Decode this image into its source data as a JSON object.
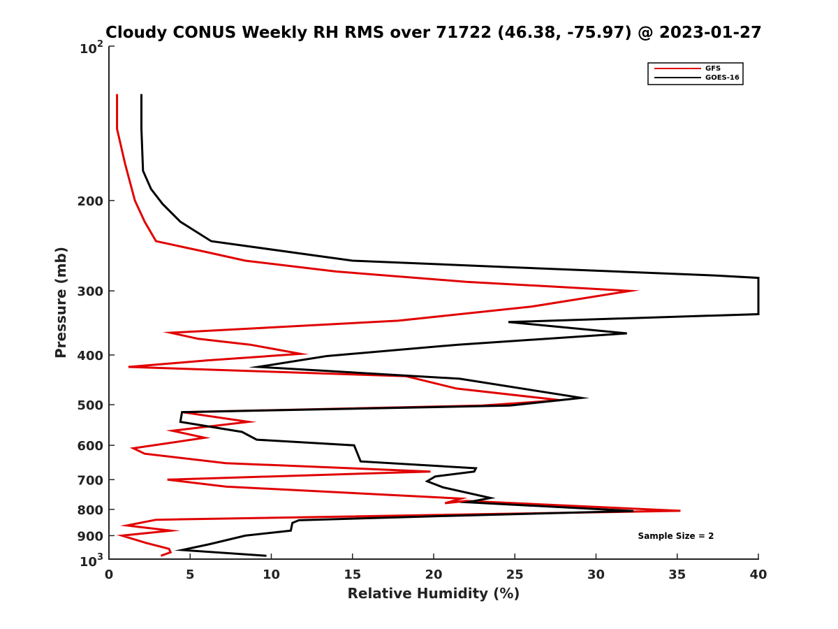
{
  "chart_data": {
    "type": "line",
    "title": "Cloudy CONUS Weekly RH RMS over 71722 (46.38, -75.97) @ 2023-01-27",
    "xlabel": "Relative Humidity (%)",
    "ylabel": "Pressure (mb)",
    "xlim": [
      0,
      40
    ],
    "ylim": [
      100,
      1000
    ],
    "yscale": "log",
    "y_reversed": true,
    "grid": false,
    "legend_position": "top-right",
    "xticks": [
      0,
      5,
      10,
      15,
      20,
      25,
      30,
      35,
      40
    ],
    "xtick_labels": [
      "0",
      "5",
      "10",
      "15",
      "20",
      "25",
      "30",
      "35",
      "40"
    ],
    "yticks": [
      100,
      200,
      300,
      400,
      500,
      600,
      700,
      800,
      900,
      1000
    ],
    "ytick_labels": [
      {
        "base": "10",
        "exp": "2"
      },
      {
        "text": "200"
      },
      {
        "text": "300"
      },
      {
        "text": "400"
      },
      {
        "text": "500"
      },
      {
        "text": "600"
      },
      {
        "text": "700"
      },
      {
        "text": "800"
      },
      {
        "text": "900"
      },
      {
        "base": "10",
        "exp": "3"
      }
    ],
    "annotation": "Sample Size = 2",
    "series": [
      {
        "name": "GFS",
        "color": "#e00000",
        "points": [
          [
            0.5,
            124
          ],
          [
            0.5,
            145
          ],
          [
            1.0,
            170
          ],
          [
            1.6,
            200
          ],
          [
            2.2,
            220
          ],
          [
            2.9,
            240
          ],
          [
            6.0,
            252
          ],
          [
            8.4,
            262
          ],
          [
            14.0,
            275
          ],
          [
            22.0,
            288
          ],
          [
            32.1,
            300
          ],
          [
            26.0,
            322
          ],
          [
            17.8,
            343
          ],
          [
            3.8,
            362
          ],
          [
            5.5,
            372
          ],
          [
            8.7,
            382
          ],
          [
            11.8,
            398
          ],
          [
            6.0,
            410
          ],
          [
            1.2,
            422
          ],
          [
            18.3,
            440
          ],
          [
            21.4,
            465
          ],
          [
            27.8,
            490
          ],
          [
            23.0,
            502
          ],
          [
            4.5,
            517
          ],
          [
            8.6,
            540
          ],
          [
            3.9,
            562
          ],
          [
            5.9,
            580
          ],
          [
            1.5,
            608
          ],
          [
            2.2,
            623
          ],
          [
            7.2,
            650
          ],
          [
            19.8,
            675
          ],
          [
            3.6,
            700
          ],
          [
            7.2,
            722
          ],
          [
            21.7,
            762
          ],
          [
            20.7,
            778
          ],
          [
            22.0,
            770
          ],
          [
            35.2,
            805
          ],
          [
            2.9,
            838
          ],
          [
            1.1,
            860
          ],
          [
            3.8,
            880
          ],
          [
            0.8,
            900
          ],
          [
            2.3,
            930
          ],
          [
            3.7,
            955
          ],
          [
            3.8,
            970
          ],
          [
            3.2,
            985
          ]
        ]
      },
      {
        "name": "GOES-16",
        "color": "#000000",
        "points": [
          [
            2.0,
            124
          ],
          [
            2.0,
            145
          ],
          [
            2.1,
            175
          ],
          [
            2.6,
            190
          ],
          [
            3.3,
            203
          ],
          [
            4.4,
            220
          ],
          [
            6.3,
            240
          ],
          [
            15.0,
            262
          ],
          [
            25.0,
            270
          ],
          [
            37.4,
            280
          ],
          [
            40.0,
            283
          ],
          [
            40.0,
            333
          ],
          [
            24.6,
            345
          ],
          [
            31.9,
            363
          ],
          [
            21.5,
            382
          ],
          [
            13.4,
            402
          ],
          [
            9.2,
            422
          ],
          [
            21.6,
            445
          ],
          [
            29.1,
            485
          ],
          [
            24.7,
            502
          ],
          [
            4.5,
            517
          ],
          [
            4.4,
            540
          ],
          [
            8.2,
            565
          ],
          [
            9.1,
            585
          ],
          [
            15.1,
            600
          ],
          [
            15.5,
            645
          ],
          [
            22.6,
            665
          ],
          [
            22.5,
            675
          ],
          [
            20.1,
            690
          ],
          [
            19.6,
            705
          ],
          [
            20.6,
            725
          ],
          [
            23.5,
            760
          ],
          [
            22.1,
            775
          ],
          [
            32.3,
            806
          ],
          [
            20.0,
            825
          ],
          [
            11.7,
            840
          ],
          [
            11.3,
            850
          ],
          [
            11.2,
            880
          ],
          [
            8.4,
            900
          ],
          [
            6.2,
            935
          ],
          [
            4.5,
            960
          ],
          [
            9.7,
            985
          ]
        ]
      }
    ]
  }
}
